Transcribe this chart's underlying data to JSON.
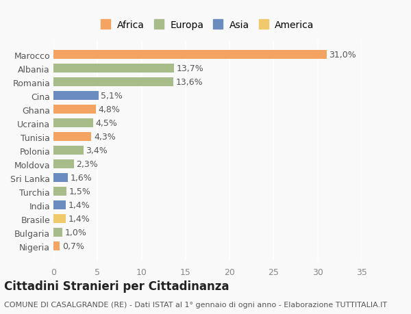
{
  "countries": [
    "Nigeria",
    "Bulgaria",
    "Brasile",
    "India",
    "Turchia",
    "Sri Lanka",
    "Moldova",
    "Polonia",
    "Tunisia",
    "Ucraina",
    "Ghana",
    "Cina",
    "Romania",
    "Albania",
    "Marocco"
  ],
  "values": [
    0.7,
    1.0,
    1.4,
    1.4,
    1.5,
    1.6,
    2.3,
    3.4,
    4.3,
    4.5,
    4.8,
    5.1,
    13.6,
    13.7,
    31.0
  ],
  "labels": [
    "0,7%",
    "1,0%",
    "1,4%",
    "1,4%",
    "1,5%",
    "1,6%",
    "2,3%",
    "3,4%",
    "4,3%",
    "4,5%",
    "4,8%",
    "5,1%",
    "13,6%",
    "13,7%",
    "31,0%"
  ],
  "continents": [
    "Africa",
    "Europa",
    "America",
    "Asia",
    "Europa",
    "Asia",
    "Europa",
    "Europa",
    "Africa",
    "Europa",
    "Africa",
    "Asia",
    "Europa",
    "Europa",
    "Africa"
  ],
  "continent_colors": {
    "Africa": "#F4A460",
    "Europa": "#A8BC8A",
    "Asia": "#6B8CBE",
    "America": "#F0C96B"
  },
  "legend_order": [
    "Africa",
    "Europa",
    "Asia",
    "America"
  ],
  "legend_colors": {
    "Africa": "#F4A460",
    "Europa": "#A8BC8A",
    "Asia": "#6B8CBE",
    "America": "#F0C96B"
  },
  "xlim": [
    0,
    35
  ],
  "xticks": [
    0,
    5,
    10,
    15,
    20,
    25,
    30,
    35
  ],
  "title": "Cittadini Stranieri per Cittadinanza",
  "subtitle": "COMUNE DI CASALGRANDE (RE) - Dati ISTAT al 1° gennaio di ogni anno - Elaborazione TUTTITALIA.IT",
  "background_color": "#f9f9f9",
  "bar_height": 0.65,
  "label_fontsize": 9,
  "tick_fontsize": 9,
  "title_fontsize": 12,
  "subtitle_fontsize": 8
}
